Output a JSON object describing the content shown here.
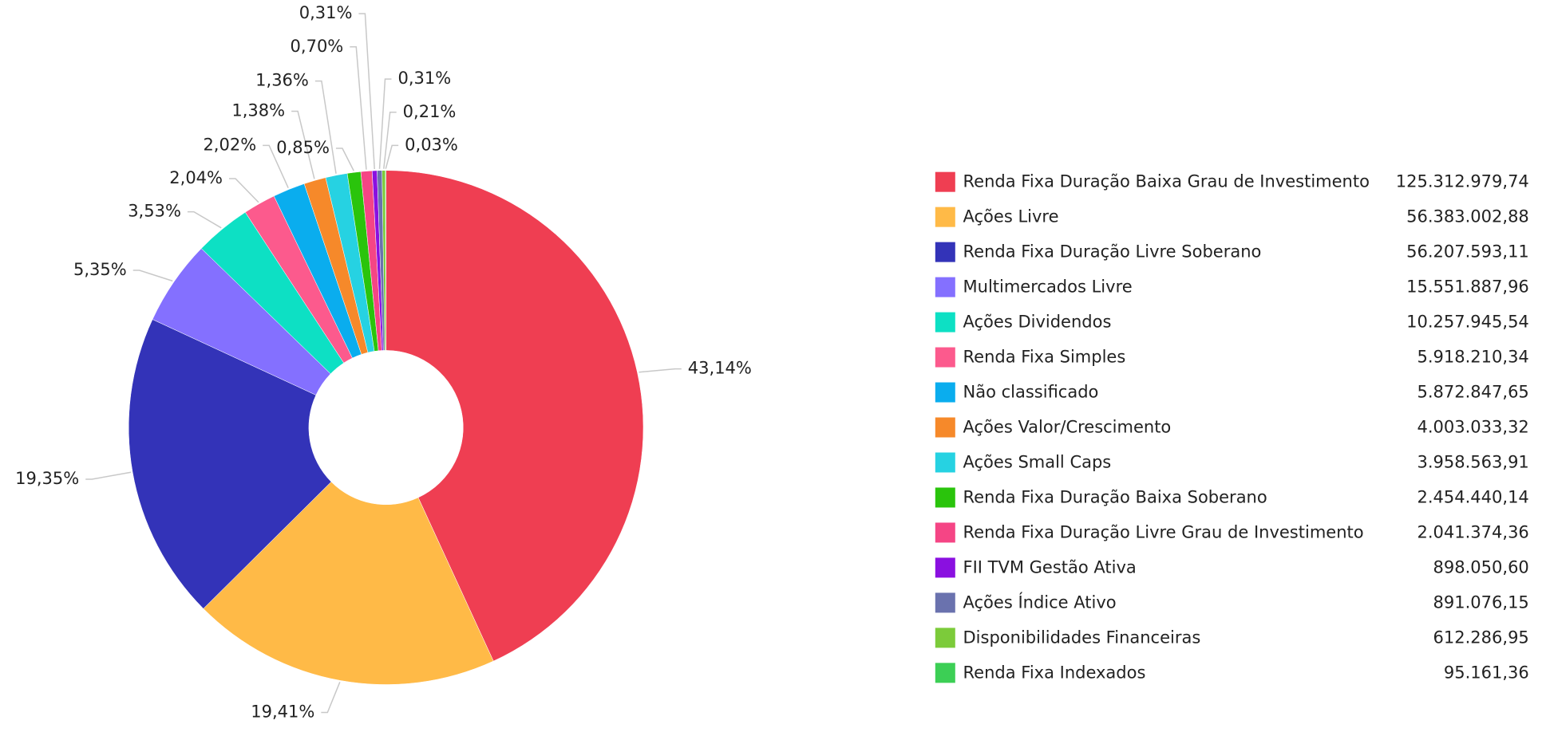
{
  "chart_data": {
    "type": "donut",
    "categories": [
      "Renda Fixa Duração Baixa Grau de Investimento",
      "Ações Livre",
      "Renda Fixa Duração Livre Soberano",
      "Multimercados Livre",
      "Ações Dividendos",
      "Renda Fixa Simples",
      "Não classificado",
      "Ações Valor/Crescimento",
      "Ações Small Caps",
      "Renda Fixa Duração Baixa Soberano",
      "Renda Fixa Duração Livre Grau de Investimento",
      "FII TVM Gestão Ativa",
      "Ações Índice Ativo",
      "Disponibilidades Financeiras",
      "Renda Fixa Indexados"
    ],
    "values": [
      125312979.74,
      56383002.88,
      56207593.11,
      15551887.96,
      10257945.54,
      5918210.34,
      5872847.65,
      4003033.32,
      3958563.91,
      2454440.14,
      2041374.36,
      898050.6,
      891076.15,
      612286.95,
      95161.36
    ],
    "value_labels": [
      "125.312.979,74",
      "56.383.002,88",
      "56.207.593,11",
      "15.551.887,96",
      "10.257.945,54",
      "5.918.210,34",
      "5.872.847,65",
      "4.003.033,32",
      "3.958.563,91",
      "2.454.440,14",
      "2.041.374,36",
      "898.050,60",
      "891.076,15",
      "612.286,95",
      "95.161,36"
    ],
    "percents": [
      43.14,
      19.41,
      19.35,
      5.35,
      3.53,
      2.04,
      2.02,
      1.38,
      1.36,
      0.85,
      0.7,
      0.31,
      0.31,
      0.21,
      0.03
    ],
    "percent_labels": [
      "43,14%",
      "19,41%",
      "19,35%",
      "5,35%",
      "3,53%",
      "2,04%",
      "2,02%",
      "1,38%",
      "1,36%",
      "0,85%",
      "0,70%",
      "0,31%",
      "0,31%",
      "0,21%",
      "0,03%"
    ],
    "colors": [
      "#ef3e52",
      "#ffba47",
      "#3333b8",
      "#8470ff",
      "#0de0c4",
      "#fc5a8d",
      "#0aadee",
      "#f6892a",
      "#26d2e2",
      "#2ac40c",
      "#f54585",
      "#8a10e0",
      "#6a72ae",
      "#7ccb3a",
      "#3ccf55"
    ],
    "legend": "right"
  }
}
